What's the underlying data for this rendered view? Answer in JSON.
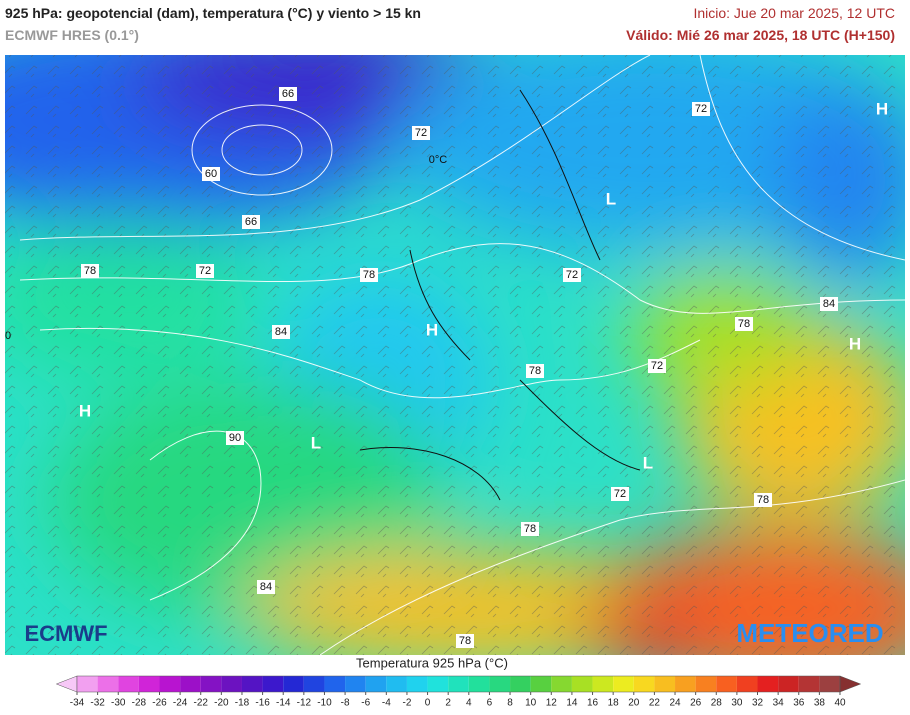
{
  "header": {
    "title": "925 hPa: geopotencial (dam), temperatura (°C) y viento > 15 kn",
    "model": "ECMWF HRES (0.1°)",
    "init": "Inicio: Jue 20 mar 2025, 12 UTC",
    "valid": "Válido: Mié 26 mar 2025, 18 UTC (H+150)"
  },
  "map": {
    "contour_labels": [
      "66",
      "72",
      "60",
      "66",
      "78",
      "72",
      "78",
      "72",
      "72",
      "84",
      "78",
      "84",
      "72",
      "78",
      "90",
      "72",
      "78",
      "78",
      "84",
      "78",
      "0",
      "0°C"
    ],
    "pressure_centers": [
      "H",
      "L",
      "H",
      "H",
      "H",
      "L",
      "L"
    ],
    "logos": [
      "ECMWF",
      "METEORED"
    ]
  },
  "legend": {
    "title": "Temperatura 925 hPa (°C)",
    "ticks": [
      -34,
      -32,
      -30,
      -28,
      -26,
      -24,
      -22,
      -20,
      -18,
      -16,
      -14,
      -12,
      -10,
      -8,
      -6,
      -4,
      -2,
      0,
      2,
      4,
      6,
      8,
      10,
      12,
      14,
      16,
      18,
      20,
      22,
      24,
      26,
      28,
      30,
      32,
      34,
      36,
      38,
      40
    ],
    "colors": [
      "#f7c8f7",
      "#f2a0f0",
      "#ec70e8",
      "#e044e0",
      "#d024d8",
      "#b814d0",
      "#9c10c8",
      "#8412c4",
      "#6c12c0",
      "#5414c4",
      "#3c18cc",
      "#2428d4",
      "#2044e0",
      "#2064ec",
      "#2084f0",
      "#20a2f0",
      "#20bcf0",
      "#20d2ee",
      "#20e2dc",
      "#20e2bc",
      "#22e09c",
      "#28d880",
      "#34d060",
      "#58d040",
      "#86d830",
      "#a8e024",
      "#cce820",
      "#ecec20",
      "#f8d820",
      "#f8be20",
      "#f8a020",
      "#f88020",
      "#f86020",
      "#f04020",
      "#e42020",
      "#cc2424",
      "#b43434",
      "#9c4040",
      "#863030"
    ]
  }
}
